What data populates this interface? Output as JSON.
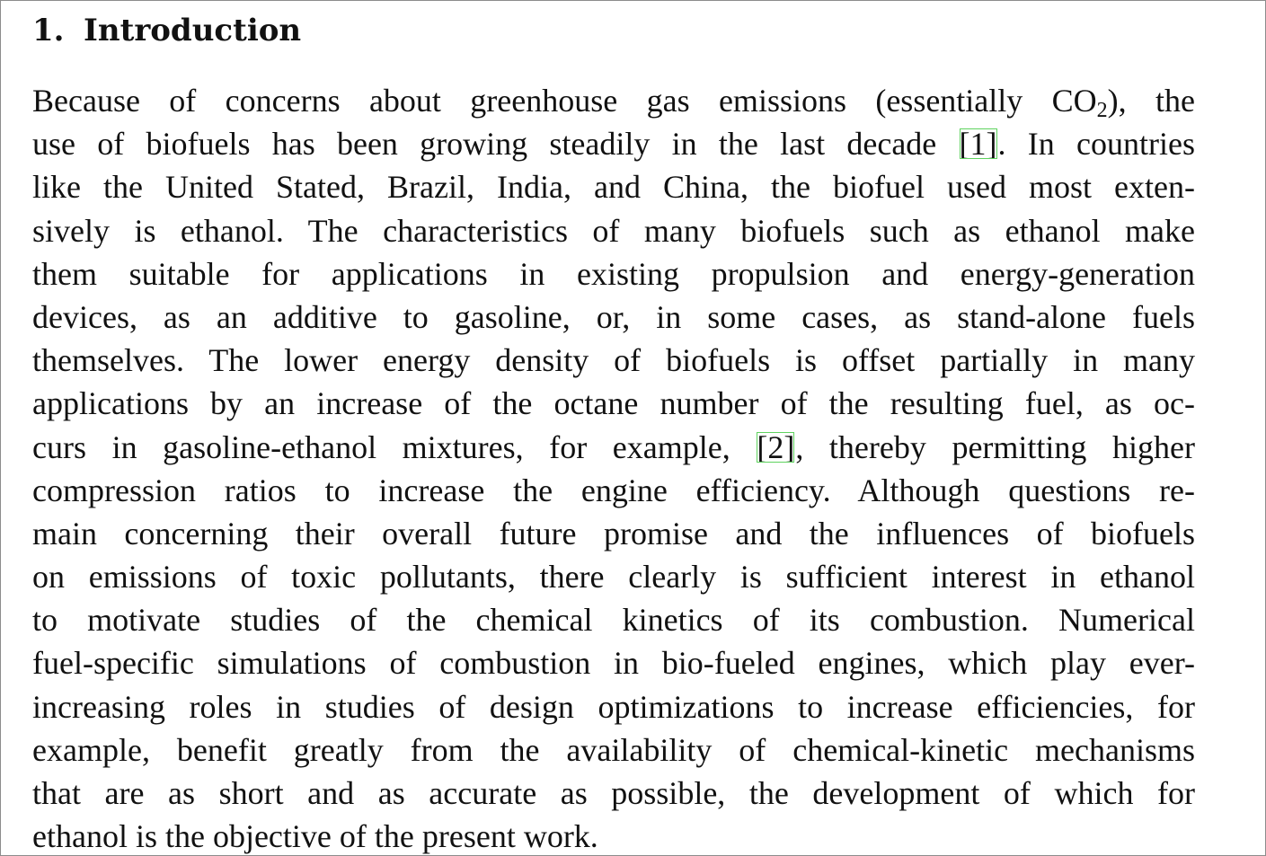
{
  "section": {
    "number": "1.",
    "title": "Introduction"
  },
  "paragraph": {
    "l1a": "Because of concerns about greenhouse gas emissions (essentially CO",
    "l1sub": "2",
    "l1b": "), the",
    "l2a": "use of biofuels has been growing steadily in the last decade ",
    "cite1": "[1]",
    "l2b": ". In countries",
    "l3": "like the United Stated, Brazil, India, and China, the biofuel used most exten-",
    "l4": "sively is ethanol. The characteristics of many biofuels such as ethanol make",
    "l5": "them suitable for applications in existing propulsion and energy-generation",
    "l6": "devices, as an additive to gasoline, or, in some cases, as stand-alone fuels",
    "l7": "themselves. The lower energy density of biofuels is offset partially in many",
    "l8": "applications by an increase of the octane number of the resulting fuel, as oc-",
    "l9a": "curs in gasoline-ethanol mixtures, for example, ",
    "cite2": "[2]",
    "l9b": ", thereby permitting higher",
    "l10": "compression ratios to increase the engine efficiency. Although questions re-",
    "l11": "main concerning their overall future promise and the influences of biofuels",
    "l12": "on emissions of toxic pollutants, there clearly is sufficient interest in ethanol",
    "l13": "to motivate studies of the chemical kinetics of its combustion. Numerical",
    "l14": "fuel-specific simulations of combustion in bio-fueled engines, which play ever-",
    "l15": "increasing roles in studies of design optimizations to increase efficiencies, for",
    "l16": "example, benefit greatly from the availability of chemical-kinetic mechanisms",
    "l17": "that are as short and as accurate as possible, the development of which for",
    "l18": "ethanol is the objective of the present work."
  },
  "colors": {
    "text": "#111111",
    "citation_border": "#5fd35f",
    "frame_border": "#8c8c8c"
  }
}
